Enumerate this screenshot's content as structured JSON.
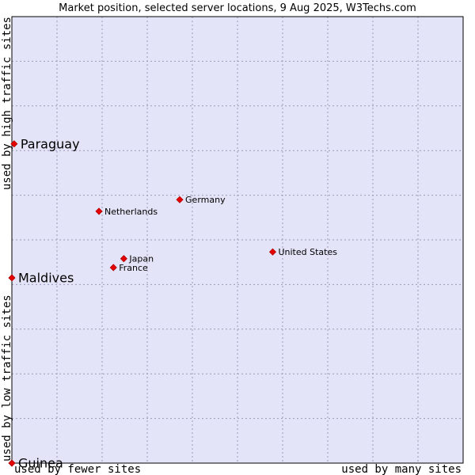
{
  "chart_data": {
    "type": "scatter",
    "title": "Market position, selected server locations, 9 Aug 2025, W3Techs.com",
    "xlabel_left": "used by fewer sites",
    "xlabel_right": "used by many sites",
    "ylabel_bottom": "used by low traffic sites",
    "ylabel_top": "used by high traffic sites",
    "xlim": [
      0,
      10
    ],
    "ylim": [
      0,
      10
    ],
    "grid": true,
    "colors": {
      "plot_background": "#e4e4f8",
      "grid": "#9a9ab8",
      "point": "#e60000",
      "point_edge": "#b00000",
      "text": "#000000",
      "frame": "#000000"
    },
    "points": [
      {
        "label": "Paraguay",
        "x": 0.05,
        "y": 7.15,
        "highlight": true
      },
      {
        "label": "Maldives",
        "x": 0.0,
        "y": 4.15,
        "highlight": true
      },
      {
        "label": "Guinea",
        "x": 0.0,
        "y": 0.0,
        "highlight": true
      },
      {
        "label": "Germany",
        "x": 3.72,
        "y": 5.9,
        "highlight": false
      },
      {
        "label": "Netherlands",
        "x": 1.93,
        "y": 5.64,
        "highlight": false
      },
      {
        "label": "United States",
        "x": 5.78,
        "y": 4.73,
        "highlight": false
      },
      {
        "label": "Japan",
        "x": 2.48,
        "y": 4.58,
        "highlight": false
      },
      {
        "label": "France",
        "x": 2.25,
        "y": 4.38,
        "highlight": false
      }
    ]
  }
}
